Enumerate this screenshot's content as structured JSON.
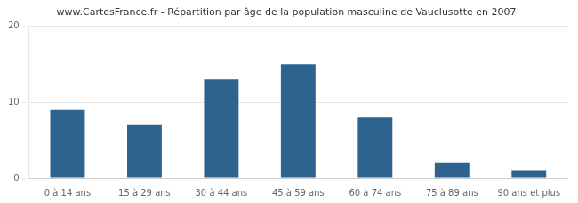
{
  "chart_data": {
    "type": "bar",
    "title": "www.CartesFrance.fr - Répartition par âge de la population masculine de Vauclusotte en 2007",
    "categories": [
      "0 à 14 ans",
      "15 à 29 ans",
      "30 à 44 ans",
      "45 à 59 ans",
      "60 à 74 ans",
      "75 à 89 ans",
      "90 ans et plus"
    ],
    "values": [
      9,
      7,
      13,
      15,
      8,
      2,
      1
    ],
    "color": "#2e6390",
    "ylim": [
      0,
      20
    ],
    "yticks": [
      0,
      10,
      20
    ],
    "grid": true
  }
}
